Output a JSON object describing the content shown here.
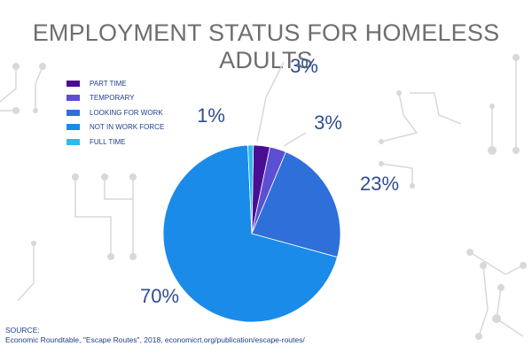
{
  "chart_data": {
    "type": "pie",
    "title": "EMPLOYMENT STATUS FOR HOMELESS ADULTS",
    "categories": [
      "PART TIME",
      "TEMPORARY",
      "LOOKING FOR WORK",
      "NOT IN WORK FORCE",
      "FULL TIME"
    ],
    "values": [
      3,
      3,
      23,
      70,
      1
    ],
    "labels": [
      "3%",
      "3%",
      "23%",
      "70%",
      "1%"
    ],
    "colors": [
      "#4a0e96",
      "#5b4fd3",
      "#2f6fd9",
      "#1a8be8",
      "#2cbaf0"
    ],
    "legend_position": "top-left"
  },
  "source": {
    "heading": "SOURCE:",
    "text": "Economic Roundtable, \"Escape Routes\", 2018, economicrt.org/publication/escape-routes/"
  }
}
